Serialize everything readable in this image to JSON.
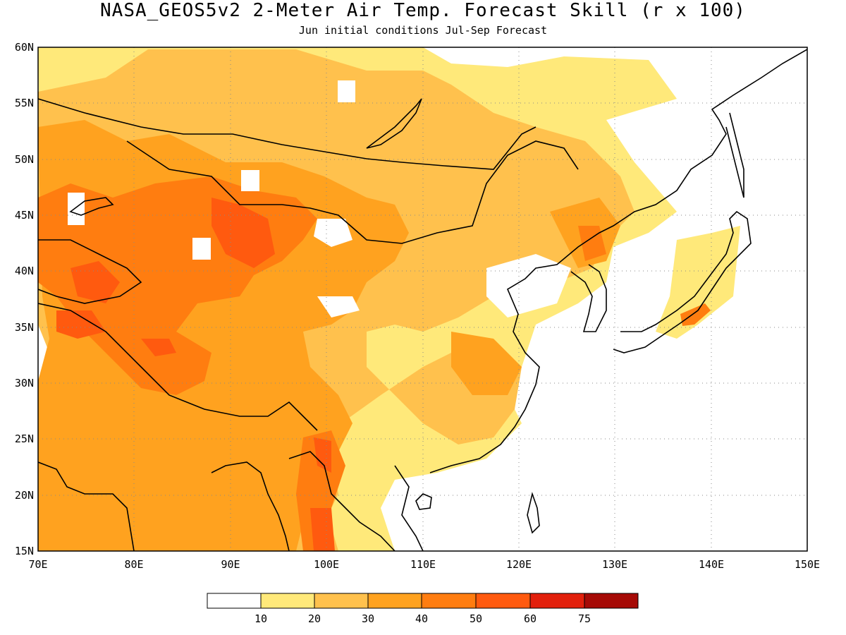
{
  "title": "NASA_GEOS5v2 2-Meter Air Temp. Forecast Skill (r x 100)",
  "subtitle": "Jun initial conditions  Jul-Sep Forecast",
  "map": {
    "lon_range": [
      70,
      150
    ],
    "lat_range": [
      15,
      60
    ],
    "lon_ticks": [
      "70E",
      "80E",
      "90E",
      "100E",
      "110E",
      "120E",
      "130E",
      "140E",
      "150E"
    ],
    "lat_ticks": [
      "60N",
      "55N",
      "50N",
      "45N",
      "40N",
      "35N",
      "30N",
      "25N",
      "20N",
      "15N"
    ],
    "grid": true,
    "field_description_levels": "filled contours of forecast skill"
  },
  "colorbar": {
    "labels": [
      "10",
      "20",
      "30",
      "40",
      "50",
      "60",
      "75"
    ],
    "colors": [
      "#ffffff",
      "#ffe97a",
      "#ffc14d",
      "#ffa21f",
      "#ff7d10",
      "#ff5a0f",
      "#e2200c",
      "#a60a06"
    ]
  }
}
